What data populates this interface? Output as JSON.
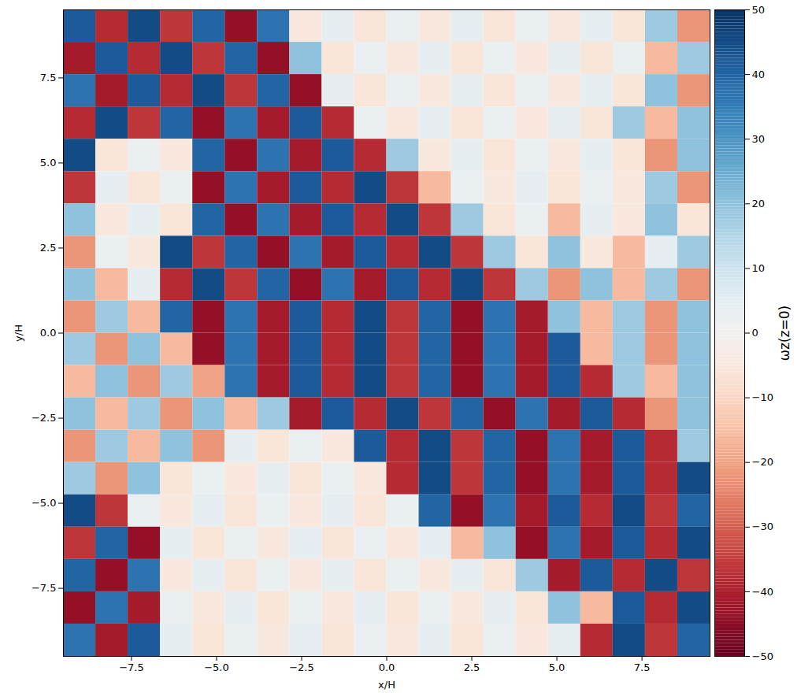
{
  "chart_data": {
    "type": "heatmap",
    "x_label": "x/H",
    "y_label": "y/H",
    "xlim": [
      -9.5,
      9.5
    ],
    "ylim": [
      -9.5,
      9.5
    ],
    "xticks": [
      {
        "value": -7.5,
        "label": "−7.5"
      },
      {
        "value": -5,
        "label": "−5.0"
      },
      {
        "value": -2.5,
        "label": "−2.5"
      },
      {
        "value": 0,
        "label": "0.0"
      },
      {
        "value": 2.5,
        "label": "2.5"
      },
      {
        "value": 5,
        "label": "5.0"
      },
      {
        "value": 7.5,
        "label": "7.5"
      }
    ],
    "yticks": [
      {
        "value": -7.5,
        "label": "−7.5"
      },
      {
        "value": -5,
        "label": "−5.0"
      },
      {
        "value": -2.5,
        "label": "−2.5"
      },
      {
        "value": 0,
        "label": "0.0"
      },
      {
        "value": 2.5,
        "label": "2.5"
      },
      {
        "value": 5,
        "label": "5.0"
      },
      {
        "value": 7.5,
        "label": "7.5"
      }
    ],
    "color": "RdBu",
    "x": [
      -9.025,
      -8.075,
      -7.125,
      -6.175,
      -5.225,
      -4.275,
      -3.325,
      -2.375,
      -1.425,
      -0.475,
      0.475,
      1.425,
      2.375,
      3.325,
      4.275,
      5.225,
      6.175,
      7.125,
      8.075,
      9.025
    ],
    "y": [
      9.025,
      8.075,
      7.125,
      6.175,
      5.225,
      4.275,
      3.325,
      2.375,
      1.425,
      0.475,
      -0.475,
      -1.425,
      -2.375,
      -3.325,
      -4.275,
      -5.225,
      -6.175,
      -7.125,
      -8.075,
      -9.025
    ],
    "values": [
      [
        42,
        -38,
        45,
        -36,
        40,
        -44,
        37,
        -5,
        4,
        -6,
        3,
        -5,
        4,
        -6,
        3,
        -5,
        4,
        -6,
        18,
        -22
      ],
      [
        -41,
        42,
        -38,
        45,
        -36,
        40,
        -44,
        20,
        -6,
        3,
        -5,
        4,
        -6,
        3,
        -5,
        4,
        -6,
        3,
        -16,
        18
      ],
      [
        37,
        -41,
        42,
        -38,
        45,
        -36,
        40,
        -44,
        4,
        -6,
        3,
        -5,
        4,
        -6,
        3,
        -5,
        4,
        -6,
        20,
        -22
      ],
      [
        -38,
        45,
        -36,
        40,
        -44,
        37,
        -41,
        42,
        -38,
        3,
        -5,
        4,
        -6,
        3,
        -5,
        4,
        -6,
        18,
        -16,
        20
      ],
      [
        45,
        -6,
        3,
        -5,
        40,
        -44,
        37,
        -41,
        42,
        -38,
        18,
        -5,
        4,
        -6,
        3,
        -5,
        4,
        -6,
        -22,
        20
      ],
      [
        -36,
        4,
        -6,
        3,
        -44,
        37,
        -41,
        42,
        -38,
        45,
        -36,
        -16,
        3,
        -5,
        4,
        -6,
        3,
        -5,
        18,
        -22
      ],
      [
        20,
        -5,
        4,
        -6,
        40,
        -44,
        37,
        -41,
        42,
        -38,
        45,
        -36,
        18,
        -6,
        3,
        -16,
        4,
        -5,
        20,
        -6
      ],
      [
        -22,
        3,
        -5,
        45,
        -36,
        40,
        -44,
        37,
        -41,
        42,
        -38,
        45,
        -36,
        18,
        -6,
        20,
        -5,
        -16,
        4,
        18
      ],
      [
        20,
        -16,
        4,
        -38,
        45,
        -36,
        40,
        -44,
        37,
        -41,
        42,
        -38,
        45,
        -36,
        18,
        -22,
        20,
        -16,
        18,
        -22
      ],
      [
        -22,
        18,
        -16,
        40,
        -44,
        37,
        -41,
        42,
        -38,
        45,
        -36,
        40,
        -44,
        37,
        -41,
        20,
        -16,
        18,
        -22,
        20
      ],
      [
        18,
        -22,
        20,
        -16,
        -44,
        37,
        -41,
        42,
        -38,
        45,
        -36,
        40,
        -44,
        37,
        -41,
        42,
        -16,
        18,
        -22,
        20
      ],
      [
        -16,
        20,
        -22,
        18,
        -20,
        37,
        -41,
        42,
        -38,
        45,
        -36,
        40,
        -44,
        37,
        -41,
        42,
        -38,
        18,
        -16,
        20
      ],
      [
        20,
        -16,
        18,
        -22,
        20,
        -16,
        18,
        -41,
        42,
        -38,
        45,
        -36,
        40,
        -44,
        37,
        -41,
        42,
        -38,
        -22,
        20
      ],
      [
        -22,
        18,
        -16,
        20,
        -22,
        4,
        -6,
        3,
        -5,
        42,
        -38,
        45,
        -36,
        40,
        -44,
        37,
        -41,
        42,
        -38,
        18
      ],
      [
        18,
        -22,
        20,
        -6,
        3,
        -5,
        4,
        -6,
        3,
        -5,
        -38,
        45,
        -36,
        40,
        -44,
        37,
        -41,
        42,
        -38,
        45
      ],
      [
        45,
        -36,
        3,
        -5,
        4,
        -6,
        3,
        -5,
        4,
        -6,
        3,
        40,
        -44,
        37,
        -41,
        42,
        -38,
        45,
        -36,
        40
      ],
      [
        -36,
        40,
        -44,
        4,
        -6,
        3,
        -5,
        4,
        -6,
        3,
        -5,
        4,
        -16,
        20,
        -44,
        37,
        -41,
        42,
        -38,
        45
      ],
      [
        40,
        -44,
        37,
        -5,
        4,
        -6,
        3,
        -5,
        4,
        -6,
        3,
        -5,
        4,
        -6,
        18,
        -41,
        42,
        -38,
        45,
        -36
      ],
      [
        -44,
        37,
        -41,
        3,
        -5,
        4,
        -6,
        3,
        -5,
        4,
        -6,
        3,
        -5,
        4,
        -6,
        20,
        -16,
        42,
        -38,
        45
      ],
      [
        37,
        -41,
        42,
        4,
        -6,
        3,
        -5,
        4,
        -6,
        3,
        -5,
        4,
        -6,
        3,
        -5,
        4,
        -38,
        45,
        -36,
        40
      ]
    ],
    "colorbar": {
      "label": "ωz(z=0)",
      "range": [
        -50,
        50
      ],
      "ticks": [
        -50,
        -40,
        -30,
        -20,
        -10,
        0,
        10,
        20,
        30,
        40,
        50
      ]
    }
  }
}
